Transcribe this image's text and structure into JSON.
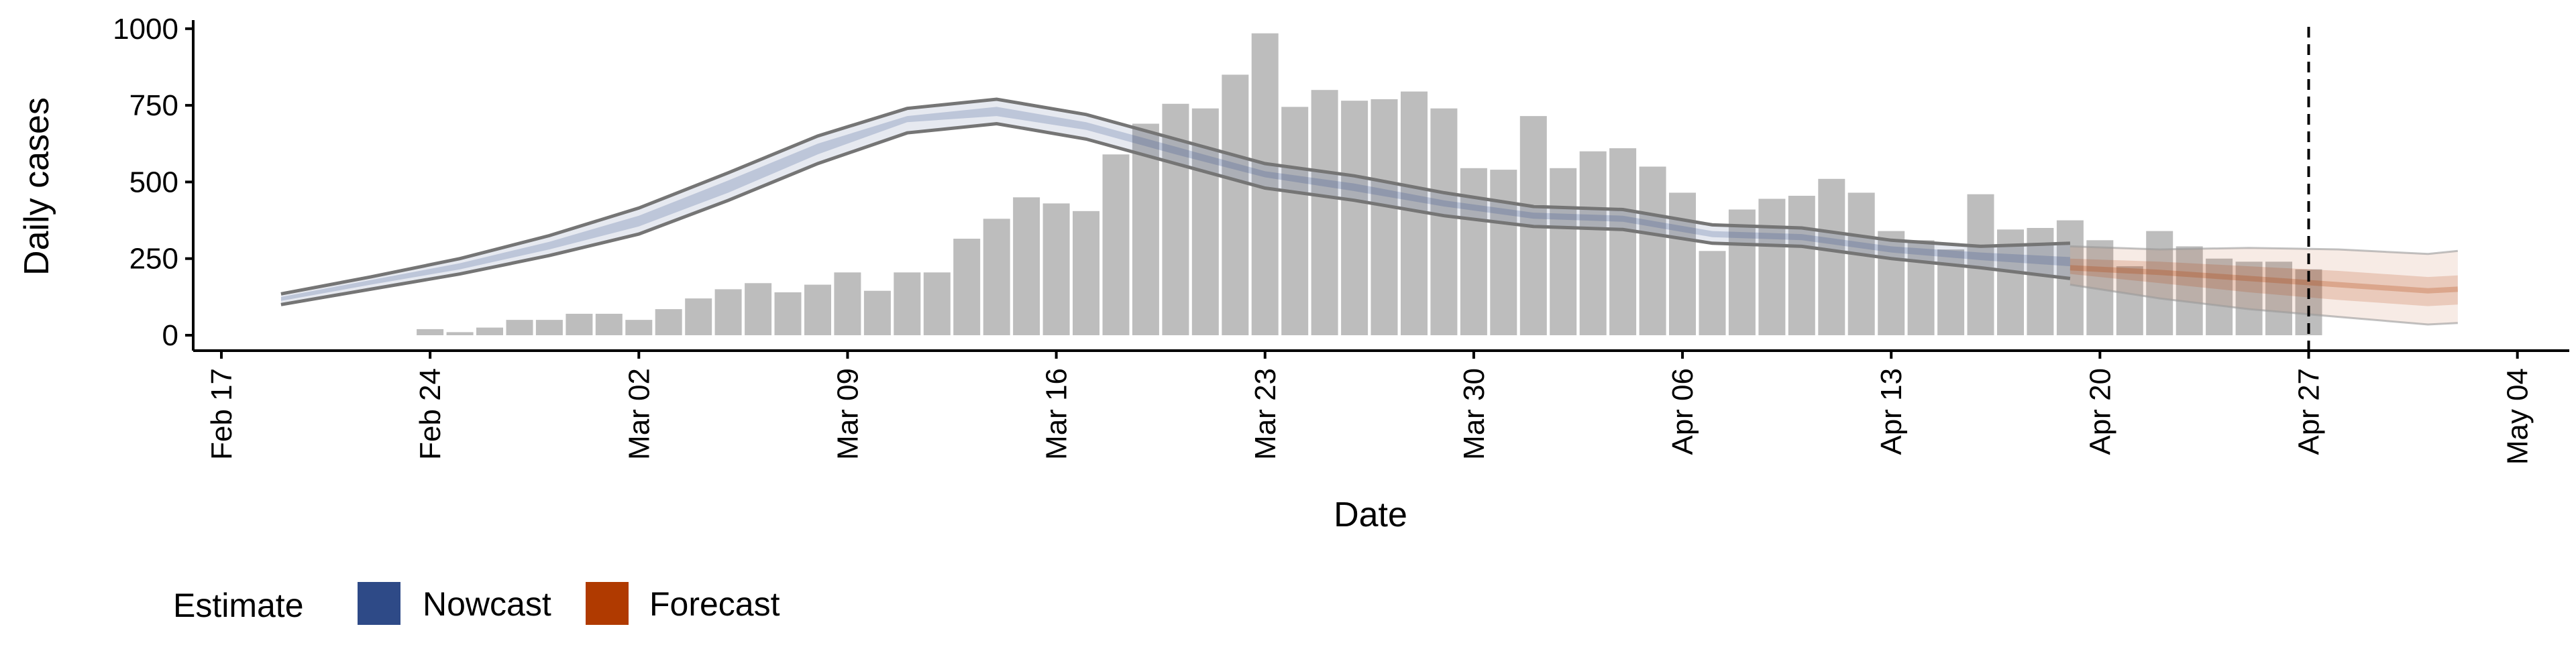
{
  "chart_data": {
    "type": "bar",
    "xlabel": "Date",
    "ylabel": "Daily cases",
    "x_axis": {
      "ticks": [
        "Feb 17",
        "Feb 24",
        "Mar 02",
        "Mar 09",
        "Mar 16",
        "Mar 23",
        "Mar 30",
        "Apr 06",
        "Apr 13",
        "Apr 20",
        "Apr 27",
        "May 04"
      ],
      "start_date": "2020-02-17",
      "range": [
        "2020-02-17",
        "2020-05-04"
      ]
    },
    "y_axis": {
      "ticks": [
        "0",
        "250",
        "500",
        "750",
        "1000"
      ],
      "tick_values": [
        0,
        250,
        500,
        750,
        1000
      ],
      "range": [
        -45,
        1010
      ]
    },
    "bars": {
      "color": "#bdbdbd",
      "dates": [
        "2020-02-24",
        "2020-02-25",
        "2020-02-26",
        "2020-02-27",
        "2020-02-28",
        "2020-02-29",
        "2020-03-01",
        "2020-03-02",
        "2020-03-03",
        "2020-03-04",
        "2020-03-05",
        "2020-03-06",
        "2020-03-07",
        "2020-03-08",
        "2020-03-09",
        "2020-03-10",
        "2020-03-11",
        "2020-03-12",
        "2020-03-13",
        "2020-03-14",
        "2020-03-15",
        "2020-03-16",
        "2020-03-17",
        "2020-03-18",
        "2020-03-19",
        "2020-03-20",
        "2020-03-21",
        "2020-03-22",
        "2020-03-23",
        "2020-03-24",
        "2020-03-25",
        "2020-03-26",
        "2020-03-27",
        "2020-03-28",
        "2020-03-29",
        "2020-03-30",
        "2020-03-31",
        "2020-04-01",
        "2020-04-02",
        "2020-04-03",
        "2020-04-04",
        "2020-04-05",
        "2020-04-06",
        "2020-04-07",
        "2020-04-08",
        "2020-04-09",
        "2020-04-10",
        "2020-04-11",
        "2020-04-12",
        "2020-04-13",
        "2020-04-14",
        "2020-04-15",
        "2020-04-16",
        "2020-04-17",
        "2020-04-18",
        "2020-04-19",
        "2020-04-20",
        "2020-04-21",
        "2020-04-22",
        "2020-04-23",
        "2020-04-24",
        "2020-04-25",
        "2020-04-26",
        "2020-04-27"
      ],
      "values": [
        20,
        10,
        25,
        50,
        50,
        70,
        70,
        50,
        85,
        120,
        150,
        170,
        140,
        165,
        205,
        145,
        205,
        205,
        315,
        380,
        450,
        430,
        405,
        590,
        690,
        755,
        740,
        850,
        985,
        745,
        800,
        765,
        770,
        795,
        740,
        545,
        540,
        715,
        545,
        600,
        610,
        550,
        465,
        275,
        410,
        445,
        455,
        510,
        465,
        340,
        310,
        280,
        460,
        345,
        350,
        375,
        310,
        225,
        340,
        290,
        250,
        240,
        240,
        215
      ]
    },
    "nowcast": {
      "dates": [
        "2020-02-19",
        "2020-02-22",
        "2020-02-25",
        "2020-02-28",
        "2020-03-02",
        "2020-03-05",
        "2020-03-08",
        "2020-03-11",
        "2020-03-14",
        "2020-03-17",
        "2020-03-20",
        "2020-03-23",
        "2020-03-26",
        "2020-03-29",
        "2020-04-01",
        "2020-04-04",
        "2020-04-07",
        "2020-04-10",
        "2020-04-13",
        "2020-04-16",
        "2020-04-19"
      ],
      "lower": [
        100,
        150,
        200,
        260,
        330,
        440,
        560,
        660,
        690,
        640,
        560,
        480,
        440,
        390,
        355,
        345,
        300,
        290,
        250,
        220,
        185
      ],
      "upper": [
        135,
        190,
        250,
        325,
        415,
        530,
        650,
        740,
        770,
        720,
        640,
        560,
        520,
        465,
        420,
        410,
        360,
        350,
        310,
        290,
        300
      ],
      "inner_lower": [
        112,
        165,
        215,
        280,
        355,
        465,
        590,
        695,
        715,
        670,
        590,
        515,
        470,
        420,
        380,
        370,
        320,
        310,
        270,
        245,
        225
      ],
      "inner_upper": [
        125,
        180,
        235,
        305,
        390,
        505,
        625,
        715,
        745,
        695,
        615,
        535,
        495,
        440,
        400,
        390,
        340,
        330,
        290,
        270,
        255
      ],
      "fill": "#2e4a87",
      "line": "#757575"
    },
    "forecast": {
      "dates": [
        "2020-04-19",
        "2020-04-22",
        "2020-04-25",
        "2020-04-28",
        "2020-05-01",
        "2020-05-02"
      ],
      "lower": [
        165,
        120,
        85,
        60,
        35,
        40
      ],
      "upper": [
        290,
        280,
        285,
        280,
        265,
        275
      ],
      "inner_lower": [
        200,
        170,
        140,
        115,
        95,
        100
      ],
      "inner_upper": [
        250,
        240,
        225,
        210,
        190,
        195
      ],
      "median": [
        220,
        205,
        185,
        165,
        145,
        150
      ],
      "fill": "#b03a00"
    },
    "vline": {
      "date": "2020-04-27",
      "style": "dashed"
    },
    "legend": {
      "title": "Estimate",
      "position": "bottom-left",
      "items": [
        {
          "label": "Nowcast",
          "color": "#2e4a87"
        },
        {
          "label": "Forecast",
          "color": "#b03a00"
        }
      ]
    },
    "grid": false
  }
}
